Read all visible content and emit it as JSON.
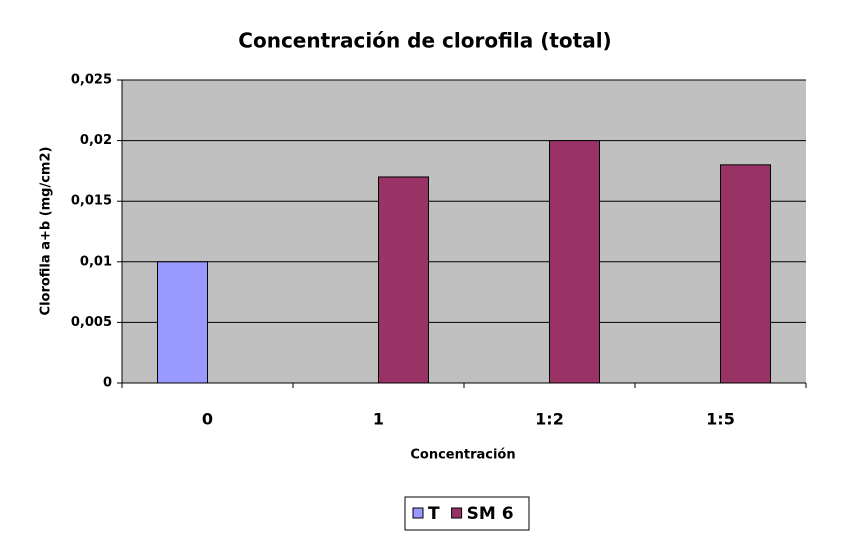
{
  "chart_data": {
    "type": "bar",
    "title": "Concentración de clorofila (total)",
    "x_label": "Concentración",
    "y_label": "Clorofila a+b (mg/cm2)",
    "categories": [
      "0",
      "1",
      "1:2",
      "1:5"
    ],
    "series": [
      {
        "name": "T",
        "color": "#9999ff",
        "values": [
          0.01,
          null,
          null,
          null
        ]
      },
      {
        "name": "SM 6",
        "color": "#993366",
        "values": [
          null,
          0.017,
          0.02,
          0.018
        ]
      }
    ],
    "ylim": [
      0,
      0.025
    ],
    "yticks": [
      0,
      {
        "value": 0.005,
        "label": "0,005"
      },
      {
        "value": 0.01,
        "label": "0,01"
      },
      {
        "value": 0.015,
        "label": "0,015"
      },
      {
        "value": 0.02,
        "label": "0,02"
      },
      {
        "value": 0.025,
        "label": "0,025"
      }
    ],
    "grid": true,
    "background": "#c0c0c0",
    "legend": "bottom"
  }
}
